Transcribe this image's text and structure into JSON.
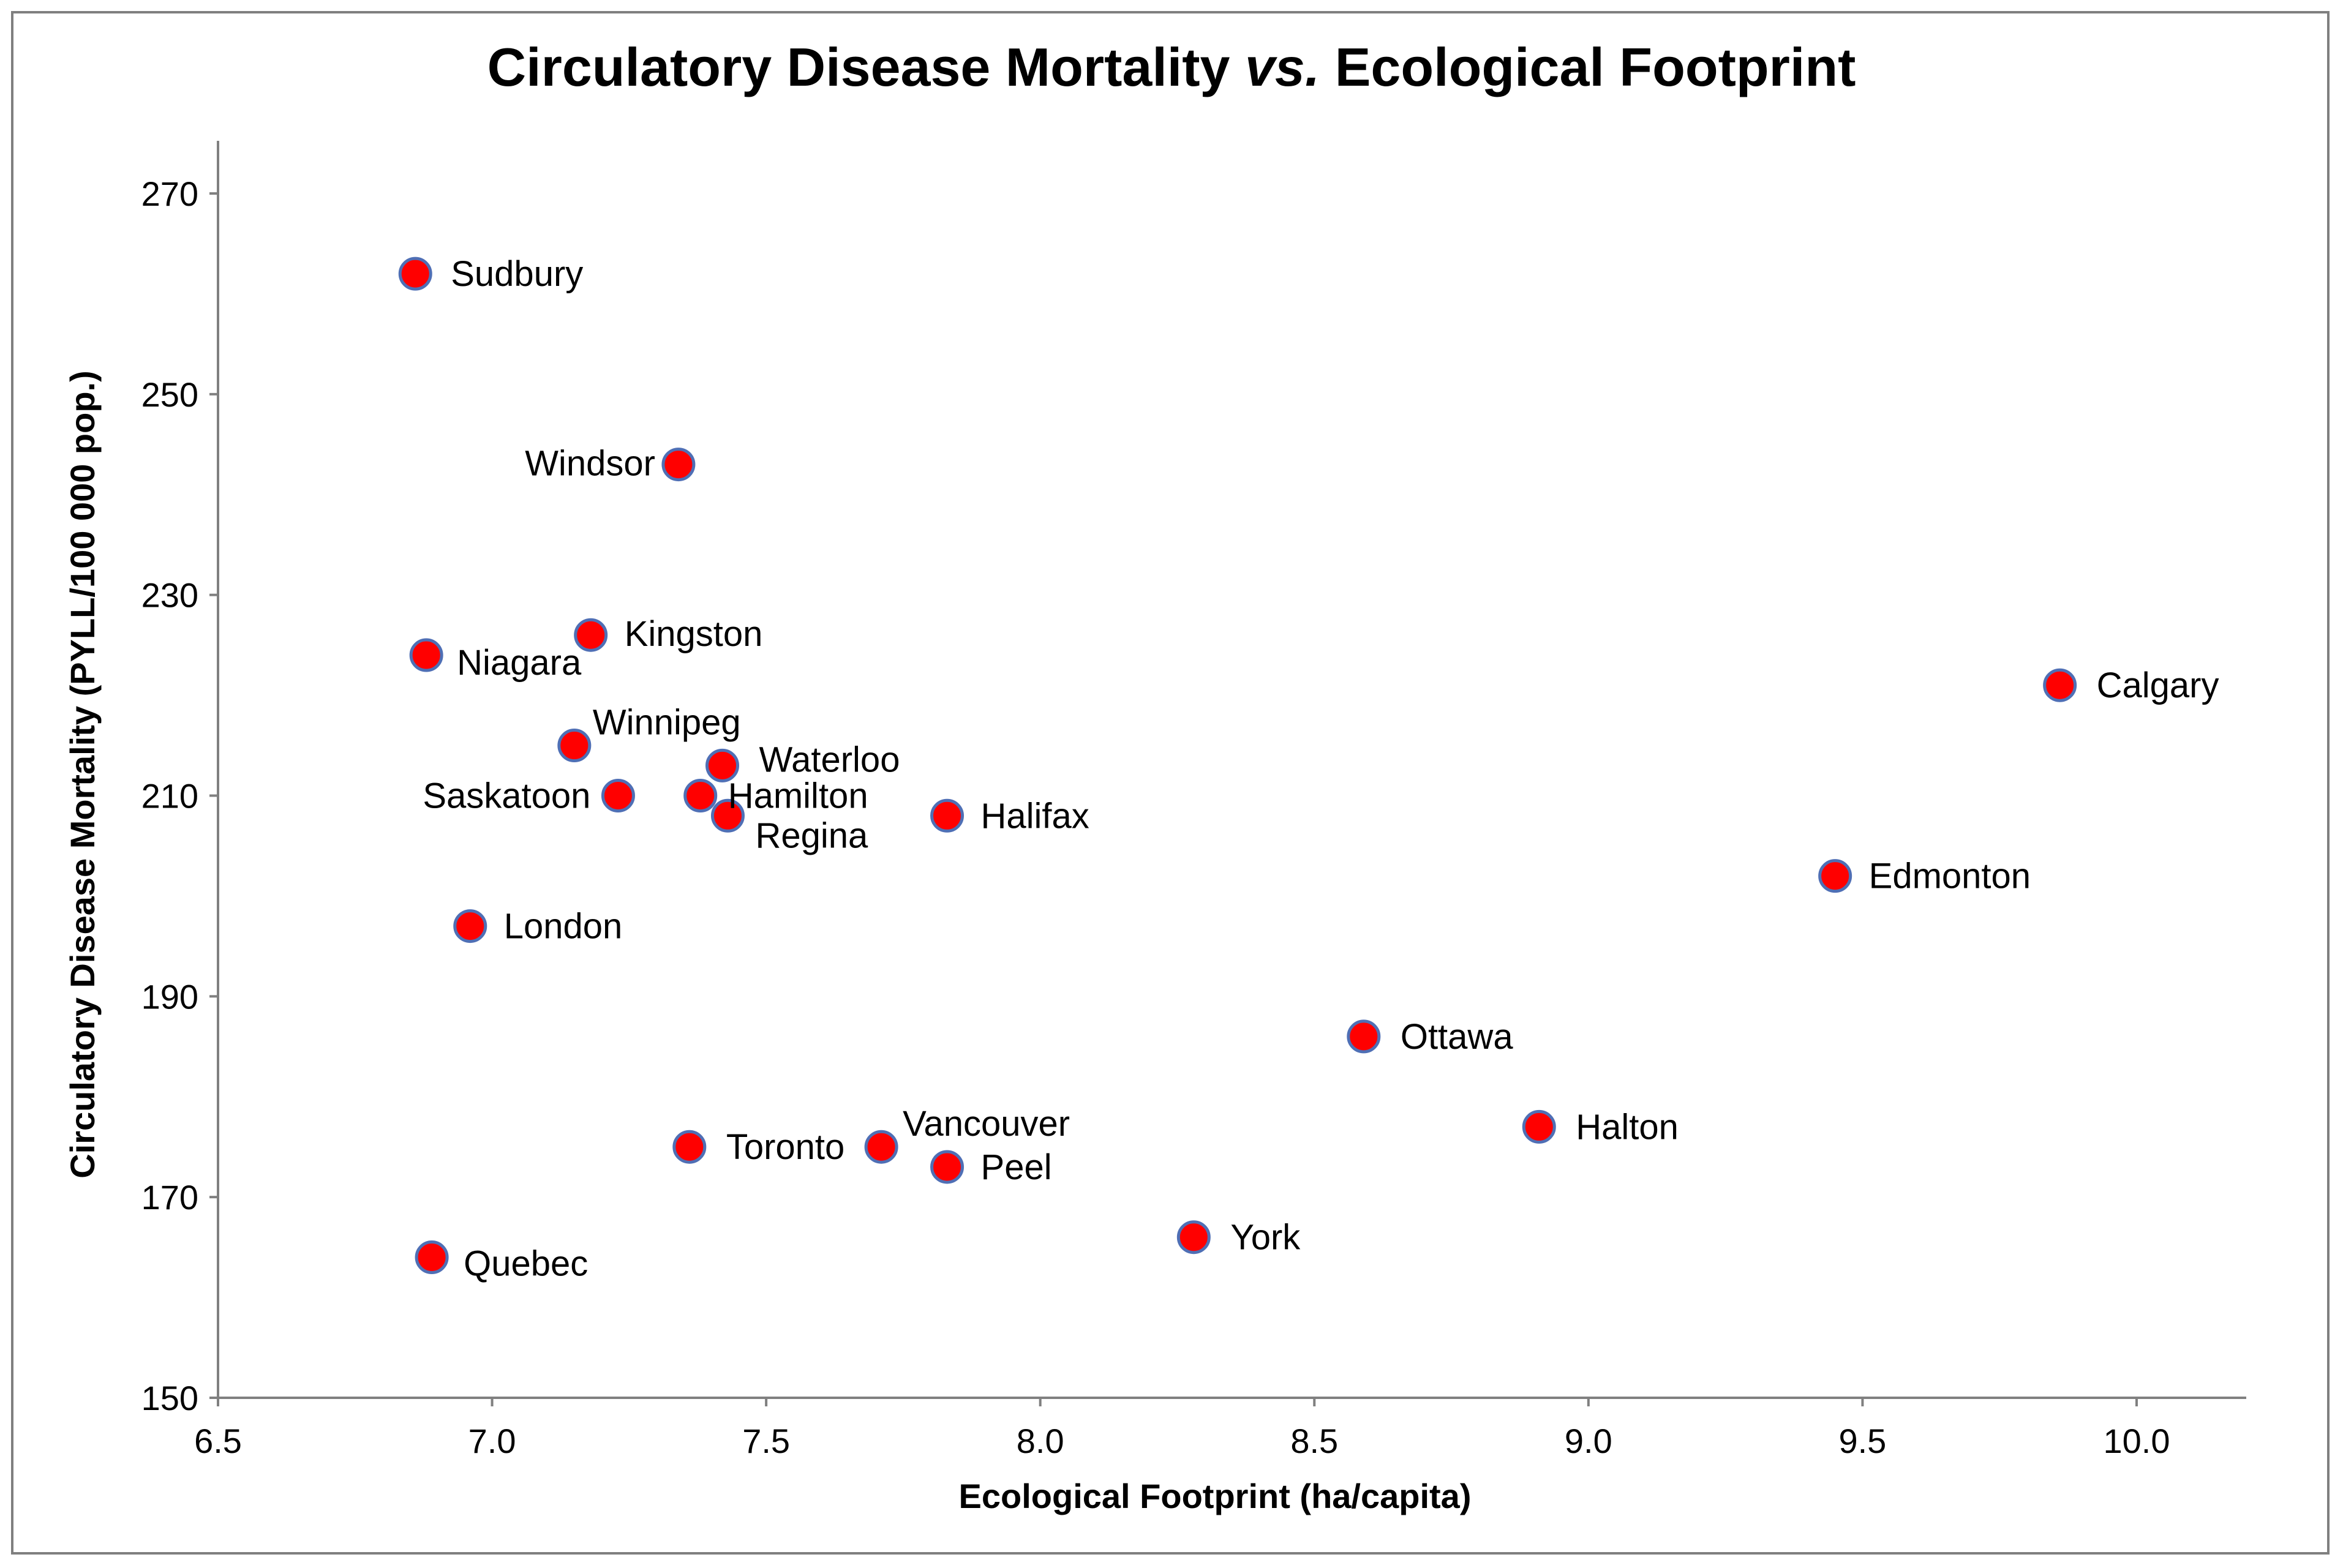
{
  "chart_data": {
    "type": "scatter",
    "title_main": "Circulatory Disease Mortality ",
    "title_vs": "vs.",
    "title_rest": " Ecological Footprint",
    "xlabel": "Ecological Footprint (ha/capita)",
    "ylabel": "Circulatory Disease Mortality (PYLL/100 000 pop.)",
    "xlim": [
      6.5,
      10.2
    ],
    "ylim": [
      150,
      275
    ],
    "x_ticks": [
      "6.5",
      "7.0",
      "7.5",
      "8.0",
      "8.5",
      "9.0",
      "9.5",
      "10.0"
    ],
    "y_ticks": [
      "150",
      "170",
      "190",
      "210",
      "230",
      "250",
      "270"
    ],
    "grid": false,
    "legend": "none",
    "marker_color": "#ff0000",
    "marker_edge_color": "#4f6fb5",
    "points": [
      {
        "label": "Sudbury",
        "x": 6.86,
        "y": 262
      },
      {
        "label": "Windsor",
        "x": 7.34,
        "y": 243
      },
      {
        "label": "Kingston",
        "x": 7.18,
        "y": 226
      },
      {
        "label": "Niagara",
        "x": 6.88,
        "y": 224
      },
      {
        "label": "Calgary",
        "x": 9.86,
        "y": 221
      },
      {
        "label": "Winnipeg",
        "x": 7.15,
        "y": 215
      },
      {
        "label": "Waterloo",
        "x": 7.42,
        "y": 213
      },
      {
        "label": "Saskatoon",
        "x": 7.23,
        "y": 210
      },
      {
        "label": "Hamilton",
        "x": 7.38,
        "y": 210
      },
      {
        "label": "Regina",
        "x": 7.43,
        "y": 208
      },
      {
        "label": "Halifax",
        "x": 7.83,
        "y": 208
      },
      {
        "label": "Edmonton",
        "x": 9.45,
        "y": 202
      },
      {
        "label": "London",
        "x": 6.96,
        "y": 197
      },
      {
        "label": "Ottawa",
        "x": 8.59,
        "y": 186
      },
      {
        "label": "Halton",
        "x": 8.91,
        "y": 177
      },
      {
        "label": "Toronto",
        "x": 7.36,
        "y": 175
      },
      {
        "label": "Vancouver",
        "x": 7.71,
        "y": 175
      },
      {
        "label": "Peel",
        "x": 7.83,
        "y": 173
      },
      {
        "label": "York",
        "x": 8.28,
        "y": 166
      },
      {
        "label": "Quebec",
        "x": 6.89,
        "y": 164
      }
    ]
  }
}
